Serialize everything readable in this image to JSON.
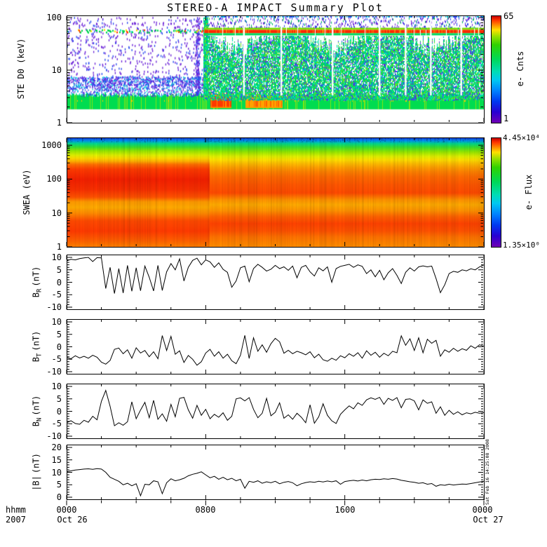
{
  "title": "STEREO-A IMPACT Summary Plot",
  "watermark": "Sat Feb 16 14:25:08 2008",
  "colors": {
    "axis": "#000000",
    "background": "#ffffff",
    "trace": "#000000",
    "rainbow_stops": [
      [
        0,
        "#c80000"
      ],
      [
        0.04,
        "#ff3800"
      ],
      [
        0.09,
        "#ff9600"
      ],
      [
        0.13,
        "#ffe000"
      ],
      [
        0.19,
        "#96e000"
      ],
      [
        0.27,
        "#2fd200"
      ],
      [
        0.4,
        "#00d855"
      ],
      [
        0.52,
        "#00dcb4"
      ],
      [
        0.6,
        "#00c8f0"
      ],
      [
        0.7,
        "#0082ff"
      ],
      [
        0.8,
        "#0038f0"
      ],
      [
        0.9,
        "#2800d2"
      ],
      [
        1,
        "#7000b4"
      ]
    ]
  },
  "x_axis": {
    "unit_label": "hhmm",
    "year_label": "2007",
    "range_hours": [
      0,
      24
    ],
    "minor_tick_hours": 2,
    "major_ticks": [
      {
        "hour": 0,
        "time": "0000",
        "date": "Oct 26"
      },
      {
        "hour": 8,
        "time": "0800",
        "date": ""
      },
      {
        "hour": 16,
        "time": "1600",
        "date": ""
      },
      {
        "hour": 24,
        "time": "0000",
        "date": "Oct 27"
      }
    ]
  },
  "chart_data": [
    {
      "id": "ste",
      "type": "heatmap",
      "ylabel": "STE D0 (keV)",
      "yscale": "log",
      "ylim": [
        1,
        110
      ],
      "yticks": [
        1,
        10,
        100
      ],
      "xlim_hours": [
        0,
        24
      ],
      "colorbar": {
        "max_label": "65",
        "min_label": "1",
        "label": "e- Cnts"
      },
      "features": {
        "onset_hour": 7.9,
        "low_band_kev": [
          1.8,
          3.3
        ],
        "line_band_kev": [
          48,
          62
        ],
        "dense_region_kev": [
          2.7,
          45
        ],
        "hot_blobs": [
          {
            "t": [
              8.3,
              9.45
            ],
            "kev": [
              1.9,
              3.5
            ]
          },
          {
            "t": [
              10.3,
              12.4
            ],
            "kev": [
              1.9,
              3.0
            ]
          }
        ],
        "white_stripe_hours": [
          10.15,
          12.3,
          15.25,
          17.95,
          19.45,
          20.9,
          22.65
        ],
        "speckle_colors": [
          "#6a20d8",
          "#2848f0"
        ]
      }
    },
    {
      "id": "swea",
      "type": "heatmap",
      "ylabel": "SWEA (eV)",
      "yscale": "log",
      "ylim": [
        1,
        1700
      ],
      "yticks": [
        1,
        10,
        100,
        1000
      ],
      "xlim_hours": [
        0,
        24
      ],
      "colorbar": {
        "max_label": "4.45×10⁴",
        "min_label": "1.35×10⁰",
        "label": "e- Flux"
      },
      "features": {
        "step_hour": 8.2,
        "profile_left": [
          [
            1700,
            "#2038e0"
          ],
          [
            1400,
            "#0090f0"
          ],
          [
            1150,
            "#00d890"
          ],
          [
            900,
            "#38e030"
          ],
          [
            700,
            "#96e800"
          ],
          [
            520,
            "#dff000"
          ],
          [
            420,
            "#ffd800"
          ],
          [
            340,
            "#ffae00"
          ],
          [
            280,
            "#ff7000"
          ],
          [
            200,
            "#ff3c00"
          ],
          [
            100,
            "#f32000"
          ],
          [
            50,
            "#f83000"
          ],
          [
            30,
            "#ff5200"
          ],
          [
            22,
            "#ff9a00"
          ],
          [
            15,
            "#ffaa00"
          ],
          [
            10,
            "#ff8a00"
          ],
          [
            6,
            "#ff4a00"
          ],
          [
            3,
            "#ff3a00"
          ],
          [
            1.5,
            "#ff6200"
          ],
          [
            1,
            "#ff8200"
          ]
        ],
        "profile_right": [
          [
            1700,
            "#2038e0"
          ],
          [
            1400,
            "#0090f0"
          ],
          [
            1150,
            "#00d890"
          ],
          [
            900,
            "#38e030"
          ],
          [
            650,
            "#96e800"
          ],
          [
            480,
            "#dff000"
          ],
          [
            380,
            "#ffe000"
          ],
          [
            300,
            "#ffc000"
          ],
          [
            230,
            "#ffa000"
          ],
          [
            170,
            "#ff8200"
          ],
          [
            120,
            "#ff6a00"
          ],
          [
            70,
            "#ff5600"
          ],
          [
            40,
            "#ff4a00"
          ],
          [
            25,
            "#ff9200"
          ],
          [
            18,
            "#ffaa00"
          ],
          [
            12,
            "#ff9200"
          ],
          [
            8,
            "#ff6200"
          ],
          [
            5,
            "#ff4200"
          ],
          [
            3,
            "#ff5200"
          ],
          [
            2,
            "#ff7200"
          ],
          [
            1,
            "#ff8e00"
          ]
        ]
      }
    },
    {
      "id": "br",
      "type": "line",
      "label": {
        "base": "B",
        "sub": "R",
        "unit": "(nT)"
      },
      "ylim": [
        -10,
        10
      ],
      "yticks": [
        -10,
        -5,
        0,
        5,
        10
      ],
      "x_start_hour": 0,
      "x_step_hours": 0.25,
      "values": [
        8.6,
        9.2,
        9.0,
        9.5,
        9.8,
        10.0,
        8.3,
        9.9,
        9.8,
        -2.5,
        6.0,
        -4.5,
        5.5,
        -4.3,
        6.8,
        -3.6,
        5.8,
        -3.4,
        6.5,
        2.0,
        -3.5,
        6.8,
        -3.3,
        4.2,
        7.5,
        5.0,
        9.4,
        0.5,
        6.0,
        8.8,
        9.7,
        7.0,
        9.0,
        8.2,
        6.0,
        7.8,
        5.2,
        4.0,
        -2.0,
        0.5,
        5.8,
        6.5,
        0.2,
        5.5,
        7.2,
        6.0,
        4.5,
        5.2,
        6.8,
        5.5,
        6.2,
        4.8,
        6.5,
        1.8,
        6.0,
        6.8,
        4.2,
        2.5,
        5.8,
        4.6,
        6.2,
        0.0,
        5.5,
        6.4,
        6.8,
        7.2,
        6.0,
        7.0,
        6.4,
        3.5,
        5.0,
        2.2,
        4.8,
        1.0,
        3.8,
        5.5,
        2.8,
        -0.5,
        4.0,
        5.8,
        4.5,
        6.2,
        6.6,
        6.2,
        6.5,
        1.5,
        -4.2,
        -1.0,
        3.5,
        4.4,
        4.0,
        5.0,
        4.6,
        5.4,
        5.0,
        6.2,
        7.0
      ]
    },
    {
      "id": "bt",
      "type": "line",
      "label": {
        "base": "B",
        "sub": "T",
        "unit": "(nT)"
      },
      "ylim": [
        -10,
        10
      ],
      "yticks": [
        -10,
        -5,
        0,
        5,
        10
      ],
      "x_start_hour": 0,
      "x_step_hours": 0.25,
      "values": [
        -4.3,
        -4.8,
        -3.6,
        -4.5,
        -3.8,
        -4.6,
        -3.4,
        -4.2,
        -6.2,
        -7.0,
        -5.5,
        -1.0,
        -0.5,
        -2.8,
        -1.2,
        -4.6,
        -0.4,
        -2.5,
        -1.5,
        -4.0,
        -2.0,
        -4.8,
        4.5,
        -1.5,
        4.2,
        -3.0,
        -1.6,
        -6.3,
        -3.5,
        -5.0,
        -7.4,
        -6.0,
        -2.5,
        -1.0,
        -3.8,
        -2.0,
        -4.6,
        -3.0,
        -5.6,
        -6.8,
        -3.4,
        4.6,
        -4.7,
        3.6,
        -1.8,
        0.8,
        -2.2,
        1.2,
        3.4,
        2.0,
        -2.6,
        -1.4,
        -2.8,
        -1.8,
        -2.4,
        -3.2,
        -2.0,
        -4.4,
        -3.0,
        -5.2,
        -5.8,
        -4.6,
        -5.4,
        -3.6,
        -4.4,
        -2.8,
        -3.8,
        -2.4,
        -4.6,
        -1.6,
        -3.4,
        -2.2,
        -4.2,
        -2.6,
        -3.6,
        -1.8,
        -2.4,
        4.4,
        0.6,
        3.2,
        -1.5,
        3.6,
        -2.4,
        3.0,
        1.4,
        2.6,
        -3.8,
        -1.2,
        -2.2,
        -0.6,
        -1.8,
        -0.8,
        -1.4,
        0.4,
        -0.6,
        0.8,
        0.2
      ]
    },
    {
      "id": "bn",
      "type": "line",
      "label": {
        "base": "B",
        "sub": "N",
        "unit": "(nT)"
      },
      "ylim": [
        -10,
        10
      ],
      "yticks": [
        -10,
        -5,
        0,
        5,
        10
      ],
      "x_start_hour": 0,
      "x_step_hours": 0.25,
      "values": [
        -4.6,
        -3.8,
        -4.9,
        -5.2,
        -3.6,
        -4.4,
        -2.0,
        -3.4,
        4.0,
        8.4,
        2.0,
        -5.8,
        -4.6,
        -5.6,
        -4.2,
        3.8,
        -3.0,
        0.5,
        3.6,
        -2.6,
        4.4,
        -3.2,
        -1.0,
        -4.0,
        2.8,
        -2.2,
        5.2,
        5.6,
        0.6,
        -2.8,
        2.4,
        -1.6,
        0.8,
        -3.0,
        -1.2,
        -2.4,
        -0.6,
        -3.6,
        -2.0,
        5.0,
        5.4,
        4.2,
        5.5,
        0.8,
        -2.6,
        -0.8,
        5.2,
        -1.8,
        -0.4,
        3.4,
        -2.8,
        -1.4,
        -3.2,
        -0.8,
        -2.4,
        -4.6,
        2.6,
        -4.8,
        -2.2,
        3.0,
        -1.6,
        -3.8,
        -4.9,
        -1.2,
        0.6,
        2.2,
        1.0,
        3.4,
        2.4,
        4.6,
        5.4,
        4.8,
        5.6,
        2.8,
        5.2,
        4.4,
        5.5,
        1.4,
        4.8,
        5.0,
        4.2,
        0.6,
        4.6,
        3.2,
        3.8,
        -0.8,
        1.8,
        -1.6,
        0.4,
        -1.2,
        -0.2,
        -1.4,
        -0.6,
        -1.0,
        -0.4,
        -0.8,
        -0.5
      ]
    },
    {
      "id": "bmag",
      "type": "line",
      "label": {
        "base": "|B|",
        "sub": "",
        "unit": "(nT)"
      },
      "ylim": [
        0,
        20
      ],
      "yticks": [
        0,
        5,
        10,
        15,
        20
      ],
      "x_start_hour": 0,
      "x_step_hours": 0.25,
      "values": [
        10.2,
        10.6,
        10.9,
        11.1,
        11.3,
        11.4,
        11.2,
        11.5,
        11.3,
        10.0,
        8.0,
        7.2,
        6.4,
        5.0,
        5.6,
        4.6,
        5.4,
        0.6,
        5.2,
        5.0,
        6.6,
        6.2,
        1.4,
        5.8,
        7.4,
        6.6,
        7.0,
        7.6,
        8.6,
        9.2,
        9.6,
        10.2,
        9.0,
        7.8,
        8.4,
        7.2,
        8.0,
        7.0,
        7.6,
        6.6,
        7.2,
        3.6,
        6.4,
        6.0,
        6.6,
        5.6,
        6.2,
        5.8,
        6.4,
        5.4,
        6.0,
        6.3,
        5.8,
        4.6,
        5.4,
        5.9,
        6.2,
        6.0,
        6.4,
        6.1,
        6.5,
        6.2,
        6.6,
        5.2,
        6.3,
        6.6,
        6.8,
        6.5,
        6.9,
        6.6,
        7.0,
        7.2,
        7.1,
        7.4,
        7.2,
        7.5,
        7.3,
        6.8,
        6.5,
        6.2,
        6.0,
        5.6,
        5.8,
        5.2,
        5.5,
        4.4,
        5.0,
        4.8,
        5.2,
        4.9,
        5.1,
        5.3,
        5.2,
        5.5,
        5.8,
        6.1,
        6.4
      ]
    }
  ]
}
